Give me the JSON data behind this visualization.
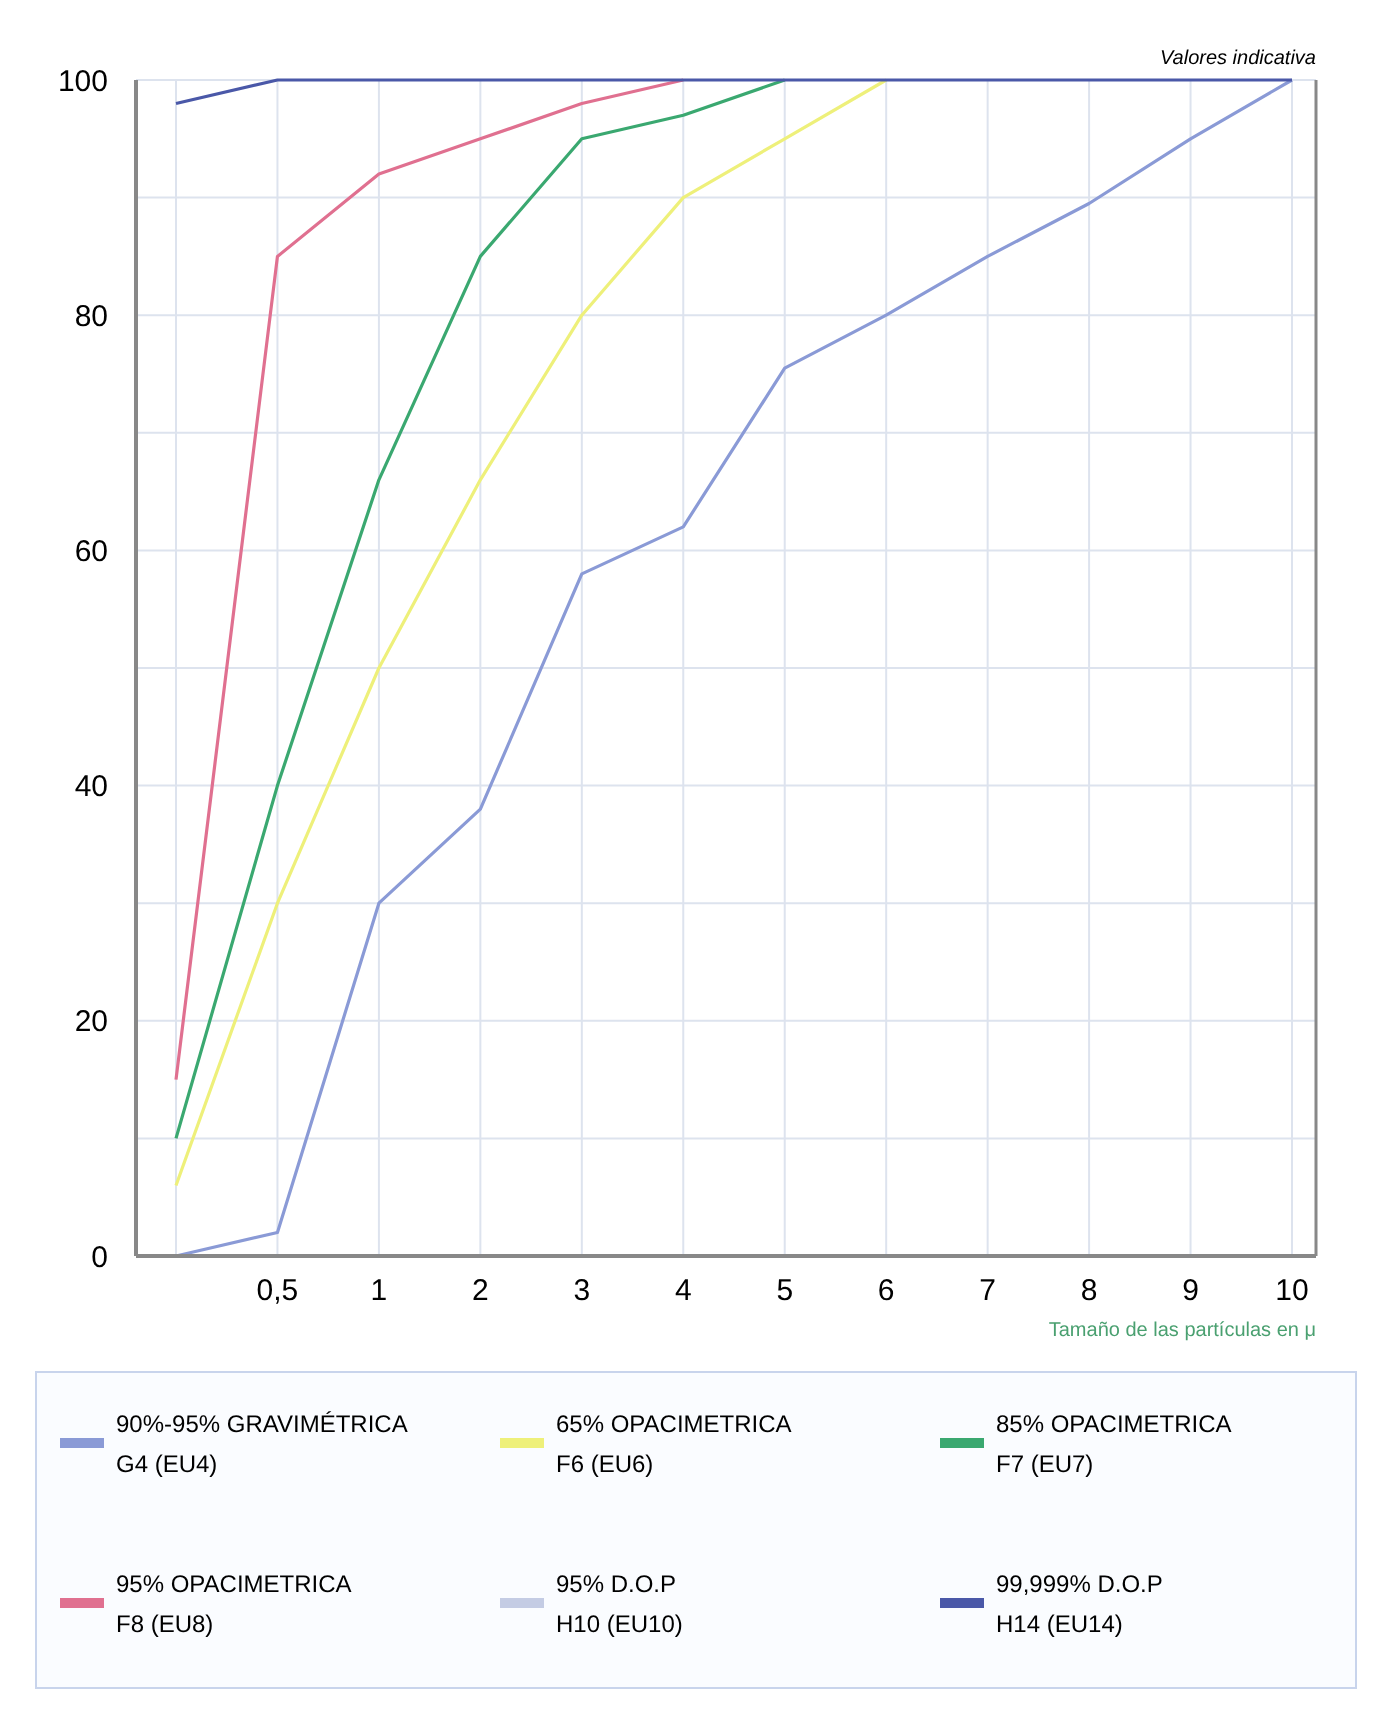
{
  "chart_data": {
    "type": "line",
    "subtitle": "Valores indicativa",
    "xlabel": "Tamaño de las partículas en μ",
    "categories": [
      null,
      "0,5",
      "1",
      "2",
      "3",
      "4",
      "5",
      "6",
      "7",
      "8",
      "9",
      "10"
    ],
    "series": [
      {
        "name": "90%-95% GRAVIMÉTRICA\nG4 (EU4)",
        "color": "#8a9ad6",
        "values": [
          0,
          2,
          30,
          38,
          58,
          62,
          75.5,
          80,
          85,
          89.5,
          95,
          100
        ]
      },
      {
        "name": "65% OPACIMETRICA\nF6 (EU6)",
        "color": "#eef07a",
        "values": [
          6,
          30,
          50,
          66,
          80,
          90,
          95,
          100,
          null,
          null,
          null,
          null
        ]
      },
      {
        "name": "85% OPACIMETRICA\nF7 (EU7)",
        "color": "#3aa870",
        "values": [
          10,
          40,
          66,
          85,
          95,
          97,
          100,
          null,
          null,
          null,
          null,
          null
        ]
      },
      {
        "name": "95%  OPACIMETRICA\nF8 (EU8)",
        "color": "#e07090",
        "values": [
          15,
          85,
          92,
          95,
          98,
          100,
          null,
          null,
          null,
          null,
          null,
          null
        ]
      },
      {
        "name": "95% D.O.P\nH10 (EU10)",
        "color": "#c4cce4",
        "values": [
          null,
          null,
          null,
          null,
          null,
          null,
          null,
          null,
          null,
          null,
          null,
          null
        ]
      },
      {
        "name": "99,999% D.O.P\nH14 (EU14)",
        "color": "#4a58a8",
        "values": [
          98,
          100,
          100,
          100,
          100,
          100,
          100,
          100,
          100,
          100,
          100,
          100
        ]
      }
    ],
    "ylim": [
      0,
      100
    ],
    "yticks": [
      0,
      {
        "value": 10,
        "label": null
      },
      20,
      {
        "value": 30,
        "label": null
      },
      40,
      {
        "value": 50,
        "label": null
      },
      60,
      {
        "value": 70,
        "label": null
      },
      80,
      {
        "value": 90,
        "label": null
      },
      100
    ],
    "grid": true,
    "legend": "bottom",
    "marker": "none",
    "line_style": "solid"
  }
}
